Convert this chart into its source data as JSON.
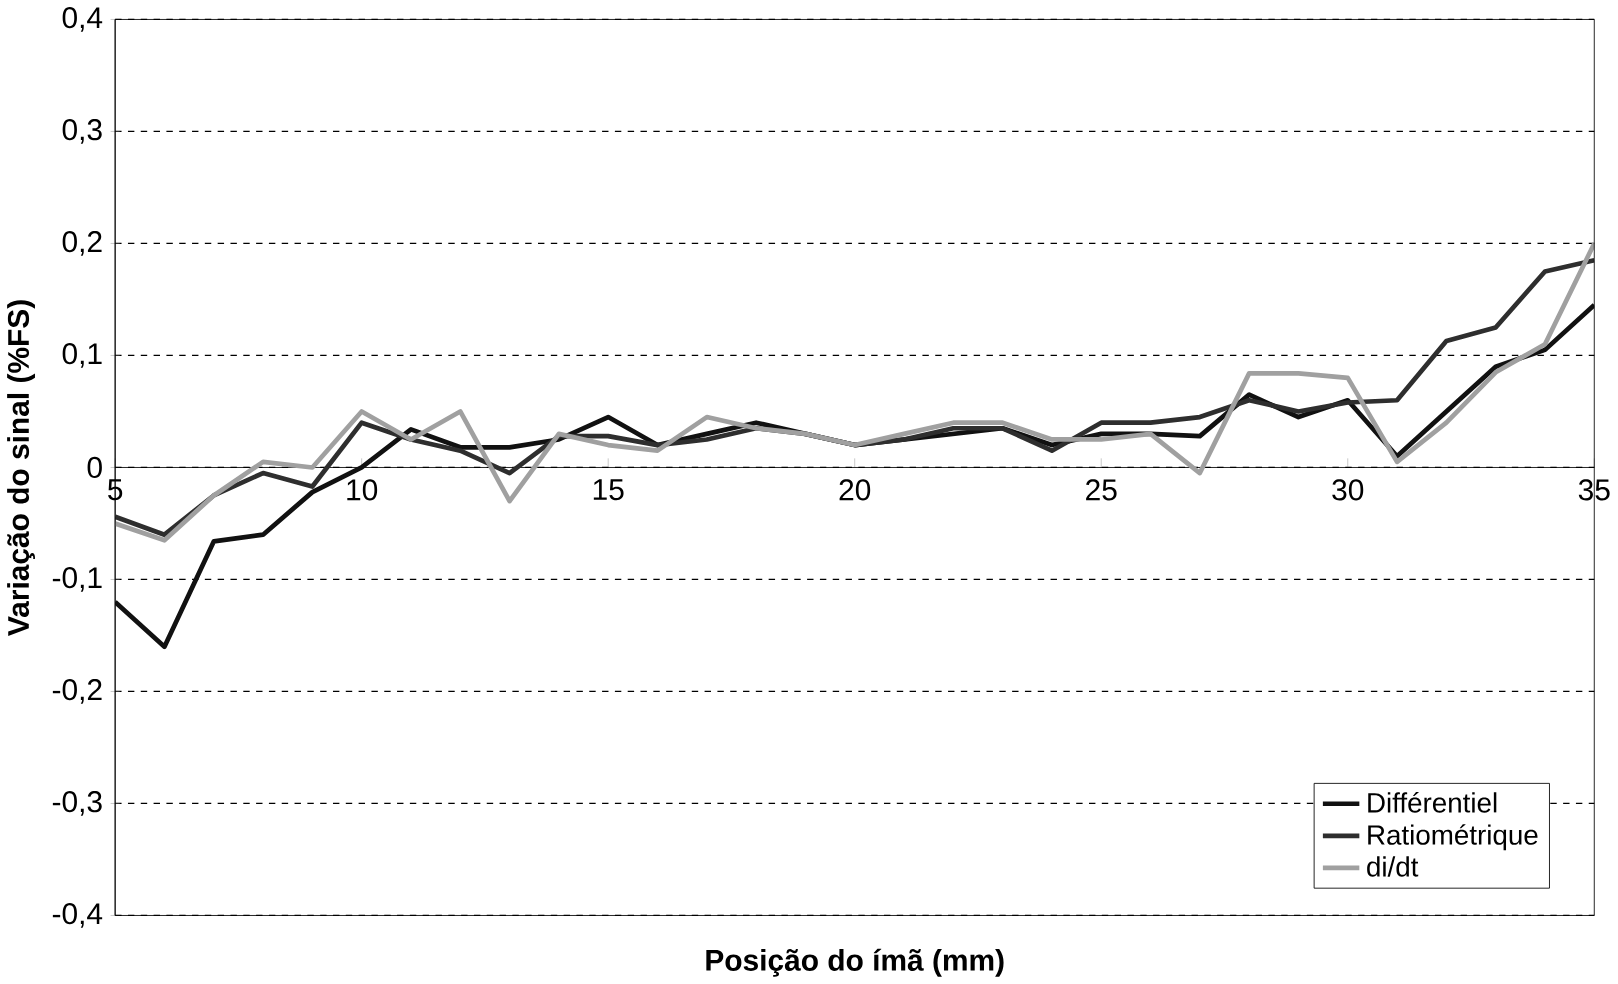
{
  "chart_data": {
    "type": "line",
    "xlabel": "Posição do ímã (mm)",
    "ylabel": "Variação do sinal (%FS)",
    "x": [
      5,
      6,
      7,
      8,
      9,
      10,
      11,
      12,
      13,
      14,
      15,
      16,
      17,
      18,
      19,
      20,
      21,
      22,
      23,
      24,
      25,
      26,
      27,
      28,
      29,
      30,
      31,
      32,
      33,
      34,
      35
    ],
    "series": [
      {
        "name": "Différentiel",
        "color": "#111111",
        "values": [
          -0.12,
          -0.16,
          -0.066,
          -0.06,
          -0.022,
          0.0,
          0.034,
          0.018,
          0.018,
          0.025,
          0.045,
          0.02,
          0.03,
          0.04,
          0.03,
          0.02,
          0.025,
          0.03,
          0.035,
          0.02,
          0.03,
          0.03,
          0.028,
          0.065,
          0.045,
          0.06,
          0.01,
          0.05,
          0.09,
          0.105,
          0.145
        ]
      },
      {
        "name": "Ratiométrique",
        "color": "#2e2e2e",
        "values": [
          -0.044,
          -0.06,
          -0.025,
          -0.005,
          -0.017,
          0.04,
          0.025,
          0.015,
          -0.005,
          0.028,
          0.028,
          0.02,
          0.025,
          0.035,
          0.03,
          0.02,
          0.025,
          0.035,
          0.035,
          0.015,
          0.04,
          0.04,
          0.045,
          0.06,
          0.05,
          0.058,
          0.06,
          0.113,
          0.125,
          0.175,
          0.185
        ]
      },
      {
        "name": "di/dt",
        "color": "#a0a0a0",
        "values": [
          -0.05,
          -0.065,
          -0.025,
          0.005,
          0.0,
          0.05,
          0.025,
          0.05,
          -0.03,
          0.03,
          0.02,
          0.015,
          0.045,
          0.035,
          0.03,
          0.02,
          0.03,
          0.04,
          0.04,
          0.025,
          0.025,
          0.03,
          -0.005,
          0.084,
          0.084,
          0.08,
          0.005,
          0.04,
          0.085,
          0.11,
          0.2
        ]
      }
    ],
    "xlim": [
      5,
      35
    ],
    "xticks": [
      5,
      10,
      15,
      20,
      25,
      30,
      35
    ],
    "ylim": [
      -0.4,
      0.4
    ],
    "yticks": [
      {
        "value": -0.4,
        "label": "-0,4"
      },
      {
        "value": -0.3,
        "label": "-0,3"
      },
      {
        "value": -0.2,
        "label": "-0,2"
      },
      {
        "value": -0.1,
        "label": "-0,1"
      },
      {
        "value": 0,
        "label": "0"
      },
      {
        "value": 0.1,
        "label": "0,1"
      },
      {
        "value": 0.2,
        "label": "0,2"
      },
      {
        "value": 0.3,
        "label": "0,3"
      },
      {
        "value": 0.4,
        "label": "0,4"
      }
    ],
    "grid": "y",
    "legend": "bottom right",
    "marker": "none",
    "line_style": "solid"
  }
}
